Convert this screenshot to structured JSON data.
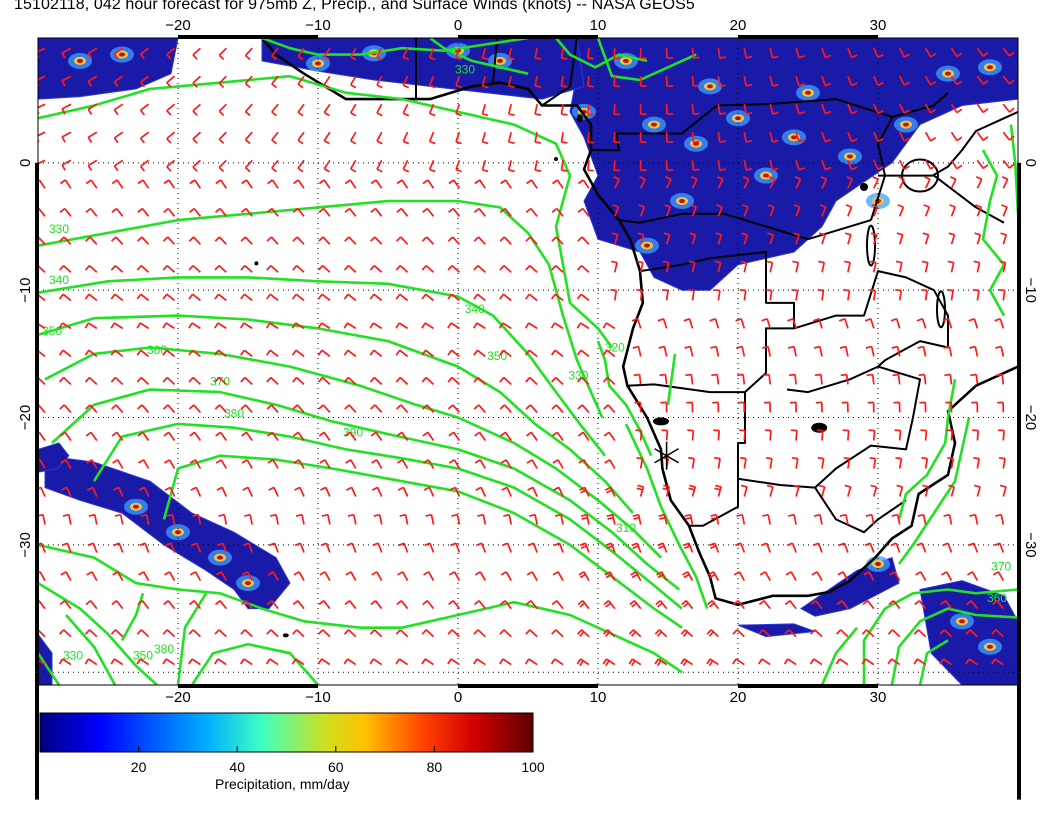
{
  "title": "15102118, 042 hour forecast for 975mb Z, Precip., and Surface Winds (knots) -- NASA GEOS5",
  "map": {
    "lon_labels_top": [
      "−20",
      "−10",
      "0",
      "10",
      "20",
      "30"
    ],
    "lon_labels_bottom": [
      "−20",
      "−10",
      "0",
      "10",
      "20",
      "30"
    ],
    "lat_labels_left": [
      "0",
      "−10",
      "−20",
      "−30"
    ],
    "lat_labels_right": [
      "0",
      "−10",
      "−20",
      "−30"
    ],
    "lon_values": [
      -20,
      -10,
      0,
      10,
      20,
      30
    ],
    "lat_values": [
      0,
      -10,
      -20,
      -30
    ],
    "lon_range": [
      -30,
      40
    ],
    "lat_range": [
      -41,
      9.8
    ],
    "contour_labels": [
      {
        "text": "330",
        "lon": -28.5,
        "lat": -5.5
      },
      {
        "text": "340",
        "lon": -28.5,
        "lat": -9.5
      },
      {
        "text": "350",
        "lon": -29.0,
        "lat": -13.5
      },
      {
        "text": "330",
        "lon": 0.5,
        "lat": 7.0
      },
      {
        "text": "360",
        "lon": -21.5,
        "lat": -15.0
      },
      {
        "text": "370",
        "lon": -17.0,
        "lat": -17.5
      },
      {
        "text": "380",
        "lon": -16.0,
        "lat": -20.0
      },
      {
        "text": "390",
        "lon": -7.5,
        "lat": -21.5
      },
      {
        "text": "340",
        "lon": 1.2,
        "lat": -11.8
      },
      {
        "text": "350",
        "lon": 2.8,
        "lat": -15.5
      },
      {
        "text": "330",
        "lon": 8.6,
        "lat": -17.0
      },
      {
        "text": "320",
        "lon": 11.2,
        "lat": -14.8
      },
      {
        "text": "310",
        "lon": 12.0,
        "lat": -29.0
      },
      {
        "text": "370",
        "lon": 38.8,
        "lat": -32.0
      },
      {
        "text": "360",
        "lon": 38.5,
        "lat": -34.5
      },
      {
        "text": "330",
        "lon": -27.5,
        "lat": -39.0
      },
      {
        "text": "350",
        "lon": -22.5,
        "lat": -39.0
      },
      {
        "text": "380",
        "lon": -21.0,
        "lat": -38.5
      }
    ],
    "marker": {
      "label": "asterisk-marker",
      "lon": 14.9,
      "lat": -23.0
    }
  },
  "colorbar": {
    "ticks": [
      "20",
      "40",
      "60",
      "80",
      "100"
    ],
    "tick_values": [
      20,
      40,
      60,
      80,
      100
    ],
    "range": [
      0,
      100
    ],
    "caption": "Precipitation, mm/day",
    "colors": [
      "#00007f",
      "#0000ff",
      "#007fff",
      "#00ffff",
      "#7fff7f",
      "#ffff00",
      "#ff7f00",
      "#ff0000",
      "#7f0000"
    ]
  },
  "style": {
    "contour_color": "#22e022",
    "wind_color": "#ff1a1a",
    "coast_color": "#000000",
    "precip_colors": [
      "#1a1aa8",
      "#2a36d8",
      "#3fa0ff",
      "#e8c64a",
      "#c41010"
    ]
  }
}
